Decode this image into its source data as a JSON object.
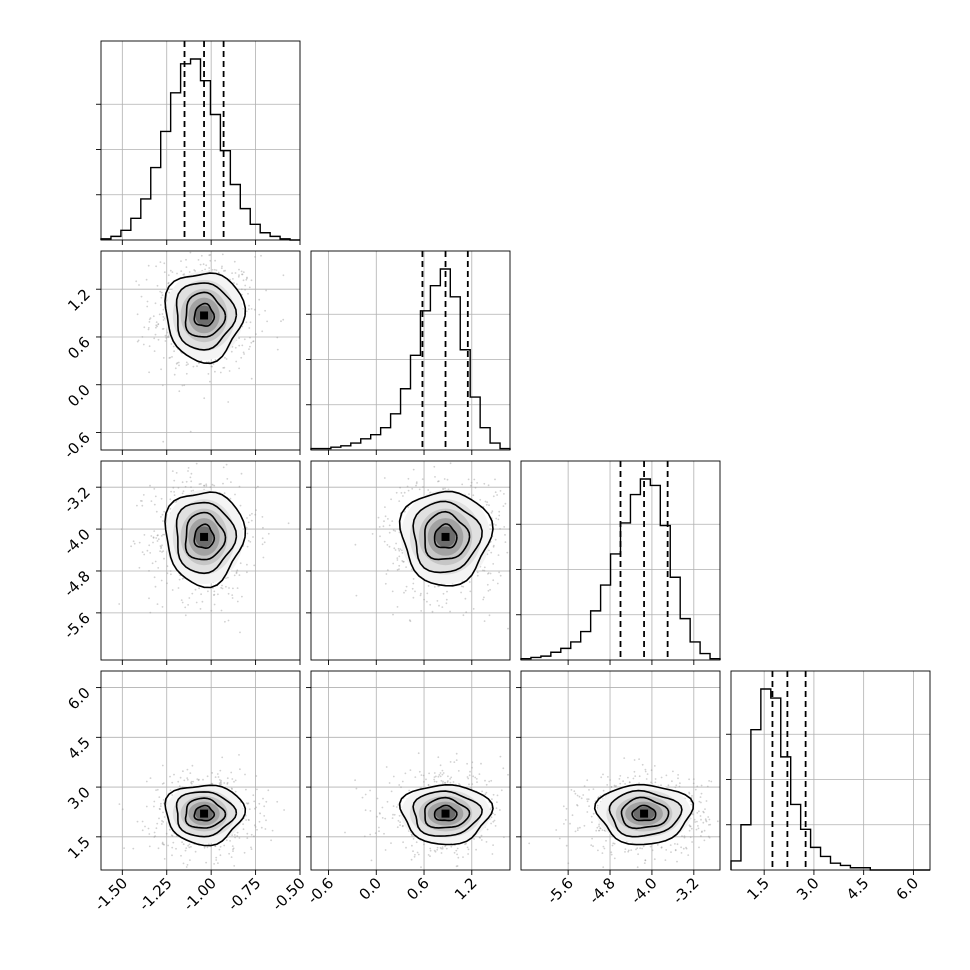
{
  "chart_data": {
    "type": "corner",
    "parameters": [
      {
        "mean": -1.04,
        "sd": 0.11,
        "range": [
          -1.62,
          -0.5
        ],
        "ticks": [
          "-1.50",
          "-1.25",
          "-1.00",
          "-0.75",
          "-0.50"
        ],
        "tick_values": [
          -1.5,
          -1.25,
          -1.0,
          -0.75,
          -0.5
        ],
        "quantiles": [
          -1.15,
          -1.04,
          -0.93
        ]
      },
      {
        "mean": 0.87,
        "sd": 0.28,
        "range": [
          -0.82,
          1.68
        ],
        "ticks": [
          "-0.6",
          "0.0",
          "0.6",
          "1.2"
        ],
        "tick_values": [
          -0.6,
          0.0,
          0.6,
          1.2
        ],
        "quantiles": [
          0.58,
          0.87,
          1.15
        ]
      },
      {
        "mean": -4.15,
        "sd": 0.45,
        "range": [
          -6.5,
          -2.7
        ],
        "ticks": [
          "-5.6",
          "-4.8",
          "-4.0",
          "-3.2"
        ],
        "tick_values": [
          -5.6,
          -4.8,
          -4.0,
          -3.2
        ],
        "quantiles": [
          -4.6,
          -4.15,
          -3.7
        ]
      },
      {
        "mean": 2.2,
        "sd": 0.45,
        "range": [
          0.5,
          6.5
        ],
        "ticks": [
          "1.5",
          "3.0",
          "4.5",
          "6.0"
        ],
        "tick_values": [
          1.5,
          3.0,
          4.5,
          6.0
        ],
        "quantiles": [
          1.75,
          2.2,
          2.75
        ]
      }
    ],
    "histograms": [
      [
        1,
        3,
        8,
        18,
        34,
        60,
        90,
        122,
        146,
        150,
        132,
        104,
        74,
        46,
        26,
        13,
        6,
        3,
        1,
        0
      ],
      [
        1,
        1,
        2,
        3,
        5,
        8,
        11,
        16,
        26,
        44,
        68,
        100,
        118,
        130,
        110,
        72,
        38,
        16,
        5,
        1
      ],
      [
        1,
        2,
        3,
        6,
        9,
        14,
        22,
        38,
        58,
        82,
        106,
        128,
        140,
        135,
        104,
        64,
        32,
        14,
        5,
        1
      ],
      [
        4,
        20,
        62,
        80,
        76,
        50,
        29,
        18,
        10,
        6,
        3,
        2,
        1,
        1,
        0,
        0,
        0,
        0,
        0,
        0
      ]
    ],
    "sigma_levels": [
      0.5,
      1.0,
      1.5,
      2.0
    ],
    "grid": true,
    "quantile_style": "dashed"
  }
}
